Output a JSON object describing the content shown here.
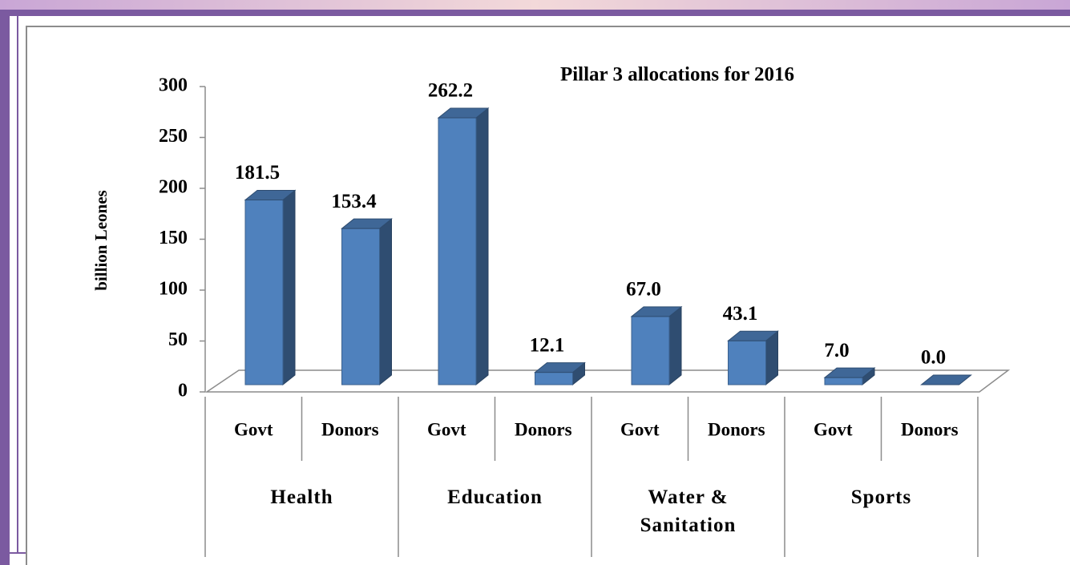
{
  "chart_data": {
    "type": "bar3d",
    "title": "Pillar 3 allocations for 2016",
    "ylabel": "billion Leones",
    "categories": [
      "Govt",
      "Donors",
      "Govt",
      "Donors",
      "Govt",
      "Donors",
      "Govt",
      "Donors"
    ],
    "groups": [
      "Health",
      "Education",
      "Water & Sanitation",
      "Sports"
    ],
    "values": [
      181.5,
      153.4,
      262.2,
      12.1,
      67.0,
      43.1,
      7.0,
      0.0
    ],
    "value_labels": [
      "181.5",
      "153.4",
      "262.2",
      "12.1",
      "67.0",
      "43.1",
      "7.0",
      "0.0"
    ],
    "color": "#4f81bd",
    "ylim": [
      0,
      300
    ],
    "yticks": [
      0,
      50,
      100,
      150,
      200,
      250,
      300
    ]
  }
}
